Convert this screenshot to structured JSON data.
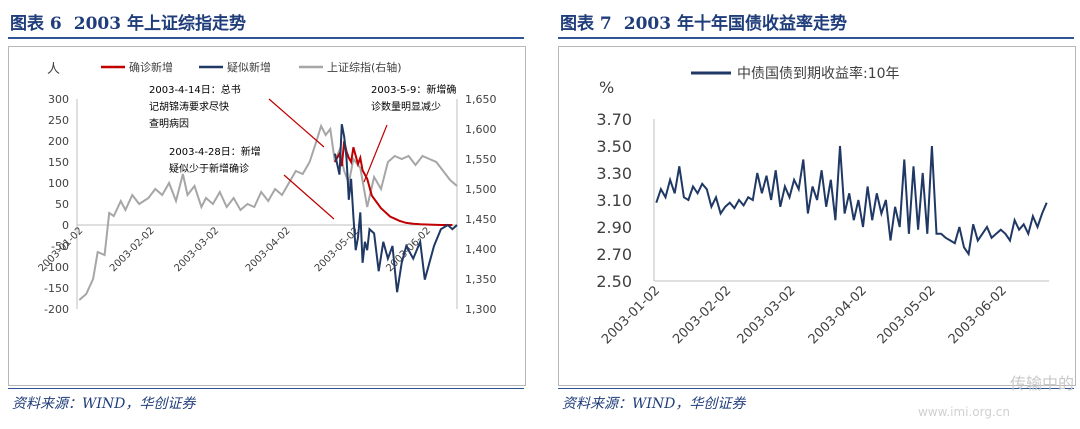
{
  "left": {
    "figure_label": "图表 6",
    "title": "2003 年上证综指走势",
    "source": "资料来源：WIND，华创证券"
  },
  "right": {
    "figure_label": "图表 7",
    "title": "2003 年十年国债收益率走势",
    "source": "资料来源：WIND，华创证券"
  },
  "watermark": "传输中的",
  "watermark_url": "www.imi.org.cn",
  "colors": {
    "confirmed": "#c00000",
    "suspected": "#1f3864",
    "index": "#a6a6a6",
    "yield": "#1f3864",
    "title": "#1f3d7a"
  },
  "chart_data": [
    {
      "type": "line",
      "title": "",
      "ylabel": "人",
      "ylim": [
        -200,
        300
      ],
      "y2lim": [
        1300,
        1650
      ],
      "yticks": [
        "300",
        "250",
        "200",
        "150",
        "100",
        "50",
        "0",
        "-50",
        "-100",
        "-150",
        "-200"
      ],
      "y2ticks": [
        "1,650",
        "1,600",
        "1,550",
        "1,500",
        "1,450",
        "1,400",
        "1,350",
        "1,300"
      ],
      "xticks": [
        "2003-01-02",
        "2003-02-02",
        "2003-03-02",
        "2003-04-02",
        "2003-05-02",
        "2003-06-02"
      ],
      "legend": [
        "确诊新增",
        "疑似新增",
        "上证综指(右轴)"
      ],
      "legend_position": "top",
      "series": [
        {
          "name": "上证综指(右轴)",
          "axis": "right",
          "x": [
            "2003-01-02",
            "2003-01-05",
            "2003-01-08",
            "2003-01-10",
            "2003-01-13",
            "2003-01-15",
            "2003-01-17",
            "2003-01-20",
            "2003-01-22",
            "2003-01-25",
            "2003-01-28",
            "2003-02-01",
            "2003-02-04",
            "2003-02-07",
            "2003-02-10",
            "2003-02-13",
            "2003-02-16",
            "2003-02-18",
            "2003-02-21",
            "2003-02-24",
            "2003-02-26",
            "2003-03-01",
            "2003-03-04",
            "2003-03-07",
            "2003-03-10",
            "2003-03-13",
            "2003-03-16",
            "2003-03-19",
            "2003-03-22",
            "2003-03-25",
            "2003-03-28",
            "2003-03-31",
            "2003-04-03",
            "2003-04-06",
            "2003-04-09",
            "2003-04-12",
            "2003-04-15",
            "2003-04-17",
            "2003-04-19",
            "2003-04-21",
            "2003-04-23",
            "2003-04-25",
            "2003-04-27",
            "2003-04-29",
            "2003-05-01",
            "2003-05-04",
            "2003-05-07",
            "2003-05-10",
            "2003-05-13",
            "2003-05-16",
            "2003-05-19",
            "2003-05-22",
            "2003-05-25",
            "2003-05-28",
            "2003-05-31",
            "2003-06-03",
            "2003-06-06",
            "2003-06-09",
            "2003-06-12",
            "2003-06-15"
          ],
          "values": [
            1315,
            1325,
            1350,
            1395,
            1390,
            1460,
            1455,
            1480,
            1465,
            1490,
            1475,
            1485,
            1500,
            1490,
            1510,
            1480,
            1525,
            1490,
            1505,
            1470,
            1485,
            1475,
            1495,
            1470,
            1485,
            1465,
            1475,
            1470,
            1495,
            1480,
            1500,
            1490,
            1510,
            1530,
            1525,
            1545,
            1580,
            1605,
            1590,
            1600,
            1545,
            1565,
            1530,
            1510,
            1550,
            1535,
            1470,
            1520,
            1500,
            1545,
            1555,
            1550,
            1555,
            1540,
            1555,
            1550,
            1545,
            1530,
            1515,
            1505
          ]
        },
        {
          "name": "确诊新增",
          "axis": "left",
          "x": [
            "2003-04-23",
            "2003-04-25",
            "2003-04-26",
            "2003-04-27",
            "2003-04-28",
            "2003-04-29",
            "2003-04-30",
            "2003-05-01",
            "2003-05-02",
            "2003-05-03",
            "2003-05-04",
            "2003-05-05",
            "2003-05-06",
            "2003-05-07",
            "2003-05-08",
            "2003-05-09",
            "2003-05-11",
            "2003-05-13",
            "2003-05-15",
            "2003-05-17",
            "2003-05-19",
            "2003-05-21",
            "2003-05-24",
            "2003-05-27",
            "2003-05-30",
            "2003-06-03",
            "2003-06-08",
            "2003-06-13"
          ],
          "values": [
            150,
            170,
            140,
            200,
            175,
            160,
            150,
            185,
            165,
            145,
            160,
            130,
            120,
            110,
            90,
            70,
            55,
            40,
            30,
            20,
            15,
            10,
            5,
            3,
            2,
            1,
            0,
            0
          ]
        },
        {
          "name": "疑似新增",
          "axis": "left",
          "x": [
            "2003-04-23",
            "2003-04-25",
            "2003-04-26",
            "2003-04-27",
            "2003-04-28",
            "2003-04-29",
            "2003-04-30",
            "2003-05-01",
            "2003-05-02",
            "2003-05-03",
            "2003-05-04",
            "2003-05-05",
            "2003-05-06",
            "2003-05-07",
            "2003-05-08",
            "2003-05-10",
            "2003-05-12",
            "2003-05-14",
            "2003-05-16",
            "2003-05-18",
            "2003-05-20",
            "2003-05-22",
            "2003-05-24",
            "2003-05-27",
            "2003-05-30",
            "2003-06-01",
            "2003-06-03",
            "2003-06-05",
            "2003-06-08",
            "2003-06-11",
            "2003-06-13",
            "2003-06-15"
          ],
          "values": [
            170,
            120,
            240,
            210,
            160,
            60,
            110,
            20,
            -60,
            -30,
            30,
            -90,
            -40,
            -60,
            -10,
            -20,
            -110,
            -40,
            -80,
            -50,
            -160,
            -90,
            -50,
            -80,
            -40,
            -130,
            -90,
            -50,
            -10,
            0,
            -10,
            0
          ]
        }
      ],
      "annotations": [
        "2003-4-14日：总书记胡锦涛要求尽快查明病因",
        "2003-4-28日：新增疑似少于新增确诊",
        "2003-5-9：新增确诊数量明显减少"
      ]
    },
    {
      "type": "line",
      "title": "",
      "ylabel": "%",
      "ylim": [
        2.5,
        3.7
      ],
      "yticks": [
        "3.70",
        "3.50",
        "3.30",
        "3.10",
        "2.90",
        "2.70",
        "2.50"
      ],
      "xticks": [
        "2003-01-02",
        "2003-02-02",
        "2003-03-02",
        "2003-04-02",
        "2003-05-02",
        "2003-06-02"
      ],
      "legend": [
        "中债国债到期收益率:10年"
      ],
      "legend_position": "top",
      "series": [
        {
          "name": "中债国债到期收益率:10年",
          "x": [
            "2003-01-02",
            "2003-01-04",
            "2003-01-06",
            "2003-01-08",
            "2003-01-10",
            "2003-01-12",
            "2003-01-14",
            "2003-01-16",
            "2003-01-18",
            "2003-01-20",
            "2003-01-22",
            "2003-01-24",
            "2003-01-26",
            "2003-01-28",
            "2003-01-30",
            "2003-02-01",
            "2003-02-03",
            "2003-02-05",
            "2003-02-07",
            "2003-02-09",
            "2003-02-11",
            "2003-02-13",
            "2003-02-15",
            "2003-02-17",
            "2003-02-19",
            "2003-02-21",
            "2003-02-23",
            "2003-02-25",
            "2003-02-27",
            "2003-03-01",
            "2003-03-03",
            "2003-03-05",
            "2003-03-07",
            "2003-03-09",
            "2003-03-11",
            "2003-03-13",
            "2003-03-15",
            "2003-03-17",
            "2003-03-19",
            "2003-03-21",
            "2003-03-23",
            "2003-03-25",
            "2003-03-27",
            "2003-03-29",
            "2003-03-31",
            "2003-04-02",
            "2003-04-04",
            "2003-04-06",
            "2003-04-08",
            "2003-04-10",
            "2003-04-12",
            "2003-04-14",
            "2003-04-16",
            "2003-04-18",
            "2003-04-20",
            "2003-04-22",
            "2003-04-24",
            "2003-04-26",
            "2003-04-28",
            "2003-04-30",
            "2003-05-02",
            "2003-05-04",
            "2003-05-06",
            "2003-05-08",
            "2003-05-10",
            "2003-05-12",
            "2003-05-14",
            "2003-05-16",
            "2003-05-18",
            "2003-05-20",
            "2003-05-22",
            "2003-05-24",
            "2003-05-26",
            "2003-05-28",
            "2003-05-30",
            "2003-06-01",
            "2003-06-03",
            "2003-06-05",
            "2003-06-07",
            "2003-06-09",
            "2003-06-11",
            "2003-06-13",
            "2003-06-15",
            "2003-06-17",
            "2003-06-19",
            "2003-06-21"
          ],
          "values": [
            3.08,
            3.18,
            3.12,
            3.25,
            3.15,
            3.35,
            3.12,
            3.1,
            3.2,
            3.15,
            3.22,
            3.18,
            3.05,
            3.12,
            3.0,
            3.05,
            3.08,
            3.04,
            3.1,
            3.06,
            3.12,
            3.1,
            3.3,
            3.15,
            3.28,
            3.1,
            3.32,
            3.05,
            3.2,
            3.12,
            3.25,
            3.18,
            3.4,
            3.0,
            3.2,
            3.1,
            3.32,
            3.05,
            3.25,
            2.95,
            3.5,
            3.0,
            3.15,
            2.95,
            3.1,
            2.9,
            3.2,
            2.95,
            3.15,
            3.0,
            3.1,
            2.8,
            3.05,
            2.9,
            3.4,
            2.85,
            3.35,
            2.88,
            3.3,
            2.85,
            3.5,
            2.85,
            2.85,
            2.82,
            2.8,
            2.78,
            2.9,
            2.75,
            2.7,
            2.92,
            2.8,
            2.85,
            2.9,
            2.82,
            2.85,
            2.88,
            2.85,
            2.8,
            2.95,
            2.88,
            2.92,
            2.85,
            2.98,
            2.9,
            3.0,
            3.08
          ]
        }
      ]
    }
  ]
}
